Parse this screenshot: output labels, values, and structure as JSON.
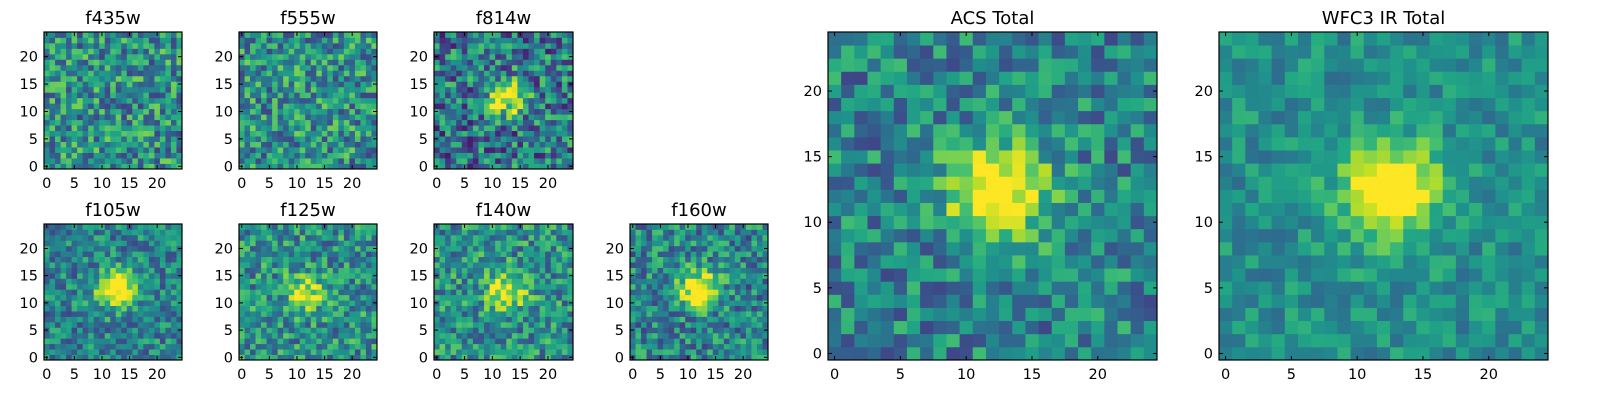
{
  "chart_data": [
    {
      "type": "heatmap",
      "title": "f435w",
      "xticks": [
        "0",
        "5",
        "10",
        "15",
        "20"
      ],
      "yticks": [
        "0",
        "5",
        "10",
        "15",
        "20"
      ],
      "xlim": [
        0,
        25
      ],
      "ylim": [
        0,
        25
      ],
      "grid": false,
      "colormap": "viridis",
      "source_center": [
        12.5,
        12.5
      ],
      "source_strength": 0.0,
      "noise_level": 0.5,
      "baseline": 0.5
    },
    {
      "type": "heatmap",
      "title": "f555w",
      "xticks": [
        "0",
        "5",
        "10",
        "15",
        "20"
      ],
      "yticks": [
        "0",
        "5",
        "10",
        "15",
        "20"
      ],
      "xlim": [
        0,
        25
      ],
      "ylim": [
        0,
        25
      ],
      "grid": false,
      "colormap": "viridis",
      "source_center": [
        12.5,
        12.5
      ],
      "source_strength": 0.0,
      "noise_level": 0.5,
      "baseline": 0.5
    },
    {
      "type": "heatmap",
      "title": "f814w",
      "xticks": [
        "0",
        "5",
        "10",
        "15",
        "20"
      ],
      "yticks": [
        "0",
        "5",
        "10",
        "15",
        "20"
      ],
      "xlim": [
        0,
        25
      ],
      "ylim": [
        0,
        25
      ],
      "grid": false,
      "colormap": "viridis",
      "source_center": [
        12.5,
        12.5
      ],
      "source_strength": 0.6,
      "noise_level": 0.55,
      "baseline": 0.4
    },
    {
      "type": "heatmap",
      "title": "f105w",
      "xticks": [
        "0",
        "5",
        "10",
        "15",
        "20"
      ],
      "yticks": [
        "0",
        "5",
        "10",
        "15",
        "20"
      ],
      "xlim": [
        0,
        25
      ],
      "ylim": [
        0,
        25
      ],
      "grid": false,
      "colormap": "viridis",
      "source_center": [
        12.5,
        12.5
      ],
      "source_strength": 0.7,
      "noise_level": 0.4,
      "baseline": 0.45
    },
    {
      "type": "heatmap",
      "title": "f125w",
      "xticks": [
        "0",
        "5",
        "10",
        "15",
        "20"
      ],
      "yticks": [
        "0",
        "5",
        "10",
        "15",
        "20"
      ],
      "xlim": [
        0,
        25
      ],
      "ylim": [
        0,
        25
      ],
      "grid": false,
      "colormap": "viridis",
      "source_center": [
        11.5,
        12.0
      ],
      "source_strength": 0.45,
      "noise_level": 0.45,
      "baseline": 0.5
    },
    {
      "type": "heatmap",
      "title": "f140w",
      "xticks": [
        "0",
        "5",
        "10",
        "15",
        "20"
      ],
      "yticks": [
        "0",
        "5",
        "10",
        "15",
        "20"
      ],
      "xlim": [
        0,
        25
      ],
      "ylim": [
        0,
        25
      ],
      "grid": false,
      "colormap": "viridis",
      "source_center": [
        12.5,
        12.0
      ],
      "source_strength": 0.55,
      "noise_level": 0.45,
      "baseline": 0.5
    },
    {
      "type": "heatmap",
      "title": "f160w",
      "xticks": [
        "0",
        "5",
        "10",
        "15",
        "20"
      ],
      "yticks": [
        "0",
        "5",
        "10",
        "15",
        "20"
      ],
      "xlim": [
        0,
        25
      ],
      "ylim": [
        0,
        25
      ],
      "grid": false,
      "colormap": "viridis",
      "source_center": [
        12.0,
        12.5
      ],
      "source_strength": 0.7,
      "noise_level": 0.45,
      "baseline": 0.45
    },
    {
      "type": "heatmap",
      "title": "ACS Total",
      "xticks": [
        "0",
        "5",
        "10",
        "15",
        "20"
      ],
      "yticks": [
        "0",
        "5",
        "10",
        "15",
        "20"
      ],
      "xlim": [
        0,
        25
      ],
      "ylim": [
        0,
        25
      ],
      "grid": false,
      "colormap": "viridis",
      "source_center": [
        12.5,
        12.5
      ],
      "source_strength": 0.75,
      "noise_level": 0.4,
      "baseline": 0.45
    },
    {
      "type": "heatmap",
      "title": "WFC3 IR Total",
      "xticks": [
        "0",
        "5",
        "10",
        "15",
        "20"
      ],
      "yticks": [
        "0",
        "5",
        "10",
        "15",
        "20"
      ],
      "xlim": [
        0,
        25
      ],
      "ylim": [
        0,
        25
      ],
      "grid": false,
      "colormap": "viridis",
      "source_center": [
        12.5,
        12.5
      ],
      "source_strength": 0.65,
      "noise_level": 0.25,
      "baseline": 0.5
    }
  ]
}
